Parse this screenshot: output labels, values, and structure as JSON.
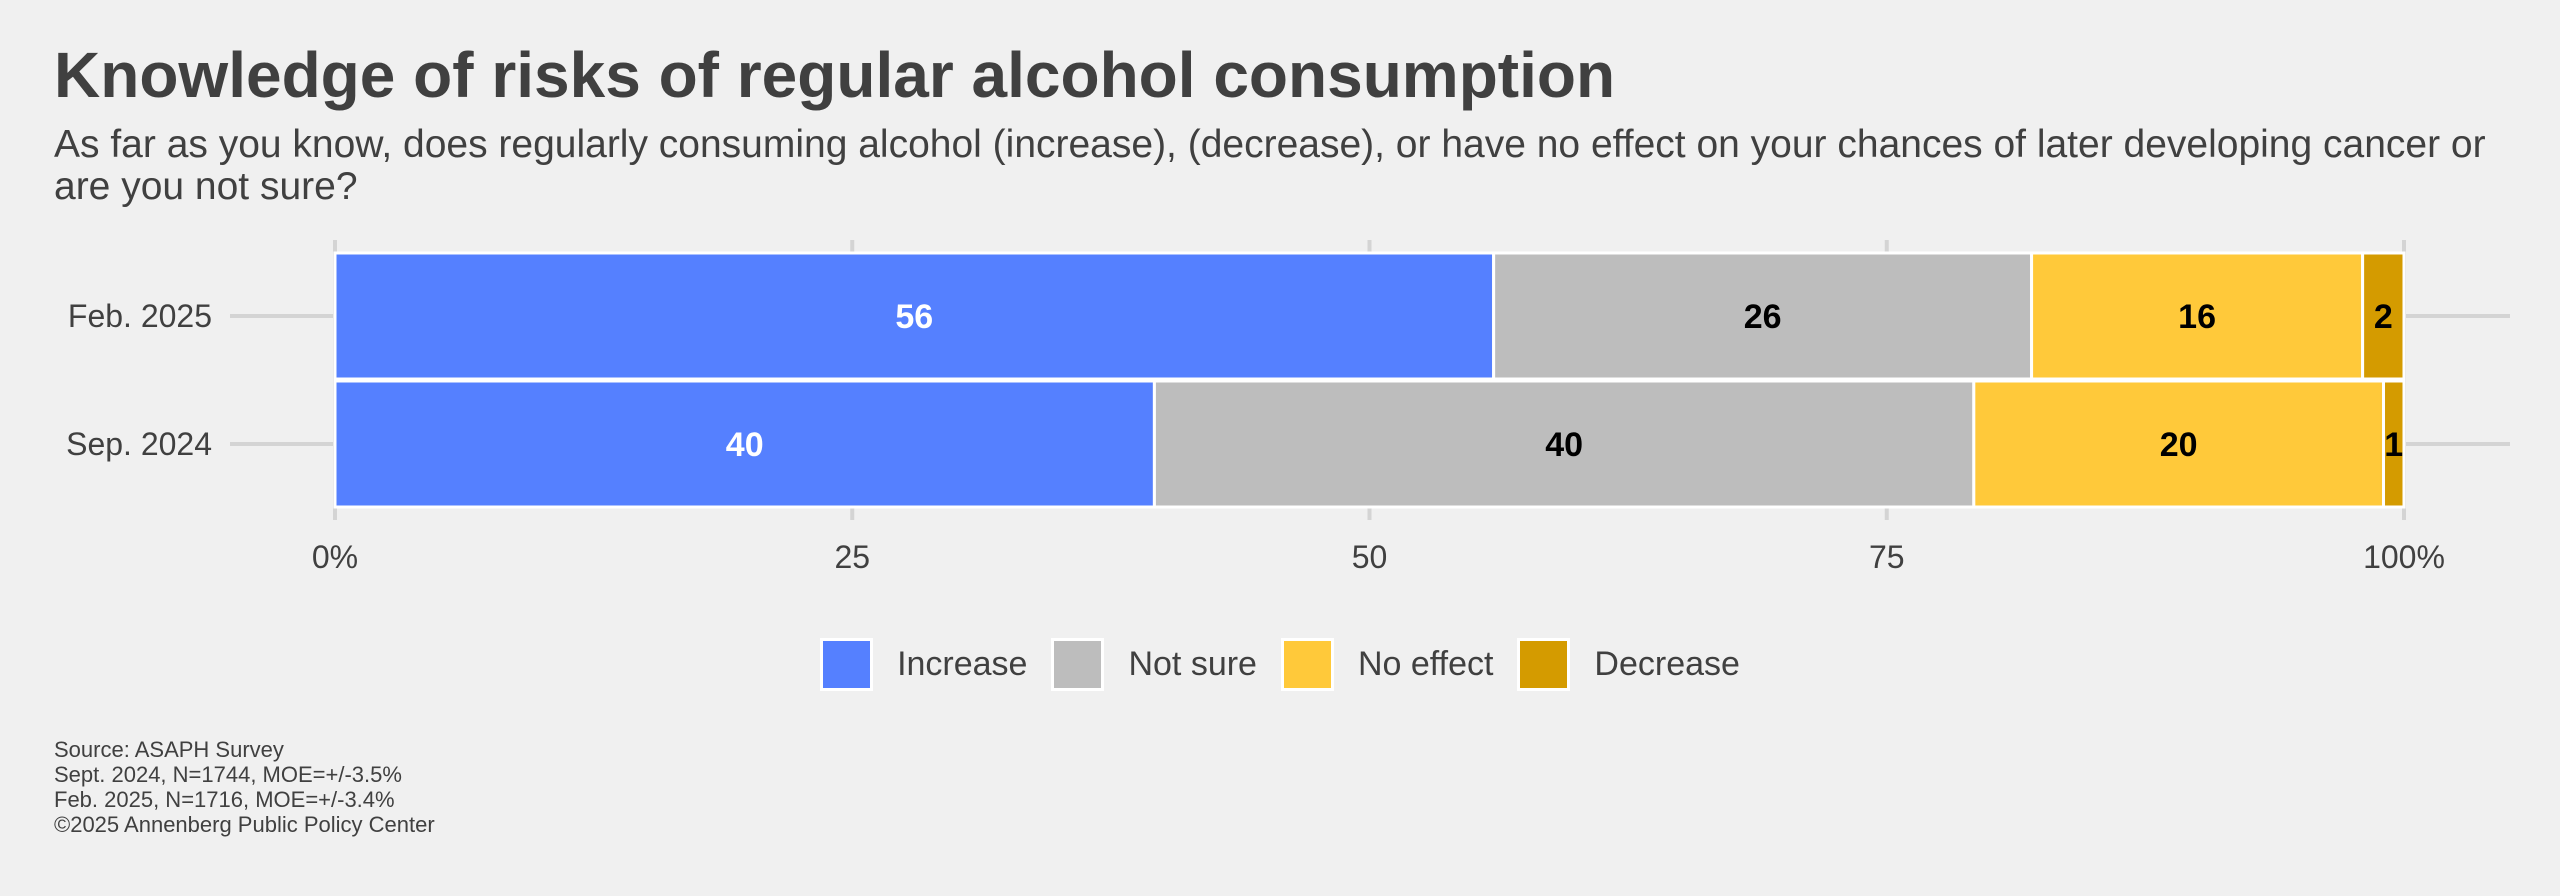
{
  "chart_data": {
    "type": "bar",
    "orientation": "horizontal",
    "stacked": true,
    "title": "Knowledge of risks of regular alcohol consumption",
    "subtitle": "As far as you know, does regularly consuming alcohol (increase), (decrease), or have no effect on your chances of later developing cancer or are you not sure?",
    "categories": [
      "Feb. 2025",
      "Sep. 2024"
    ],
    "series": [
      {
        "name": "Increase",
        "color": "#5580FF",
        "label_color": "#ffffff",
        "values": [
          56,
          40
        ]
      },
      {
        "name": "Not sure",
        "color": "#BDBDBD",
        "label_color": "#000000",
        "values": [
          26,
          40
        ]
      },
      {
        "name": "No effect",
        "color": "#FFC93A",
        "label_color": "#000000",
        "values": [
          16,
          20
        ]
      },
      {
        "name": "Decrease",
        "color": "#D49B00",
        "label_color": "#000000",
        "values": [
          2,
          1
        ]
      }
    ],
    "xlim": [
      0,
      100
    ],
    "xticks": [
      0,
      25,
      50,
      75,
      100
    ],
    "xtick_labels": [
      "0%",
      "25",
      "50",
      "75",
      "100%"
    ],
    "grid": true,
    "legend_position": "bottom"
  },
  "footer": {
    "lines": [
      "Source: ASAPH Survey",
      "Sept. 2024, N=1744, MOE=+/-3.5%",
      "Feb. 2025, N=1716, MOE=+/-3.4%",
      "©2025 Annenberg Public Policy Center"
    ]
  }
}
